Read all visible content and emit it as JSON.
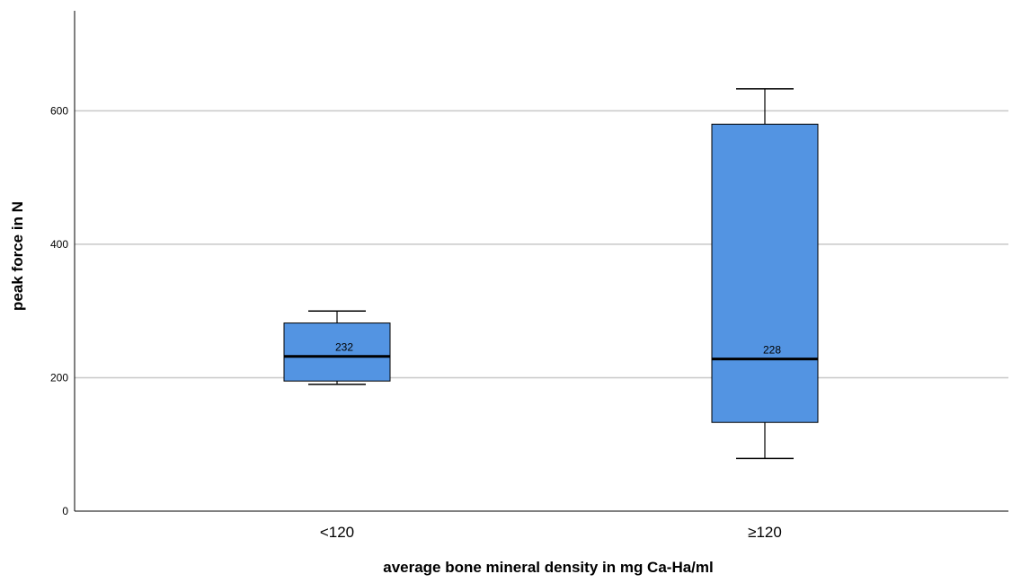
{
  "chart_data": {
    "type": "boxplot",
    "title": "",
    "xlabel": "average bone mineral density in mg Ca-Ha/ml",
    "ylabel": "peak force in N",
    "ylim": [
      0,
      750
    ],
    "yticks": [
      0,
      200,
      400,
      600
    ],
    "ytick_labels": [
      "0",
      "200",
      "400",
      "600"
    ],
    "grid": "horizontal",
    "colors": {
      "box_fill": "#5394e2",
      "stroke": "#000000",
      "grid": "#c8c8c8"
    },
    "categories": [
      "<120",
      "≥120"
    ],
    "boxes": [
      {
        "category": "<120",
        "whisker_low": 190,
        "q1": 195,
        "median": 232,
        "q3": 282,
        "whisker_high": 300,
        "median_label": "232"
      },
      {
        "category": "≥120",
        "whisker_low": 79,
        "q1": 133,
        "median": 228,
        "q3": 580,
        "whisker_high": 633,
        "median_label": "228"
      }
    ]
  }
}
